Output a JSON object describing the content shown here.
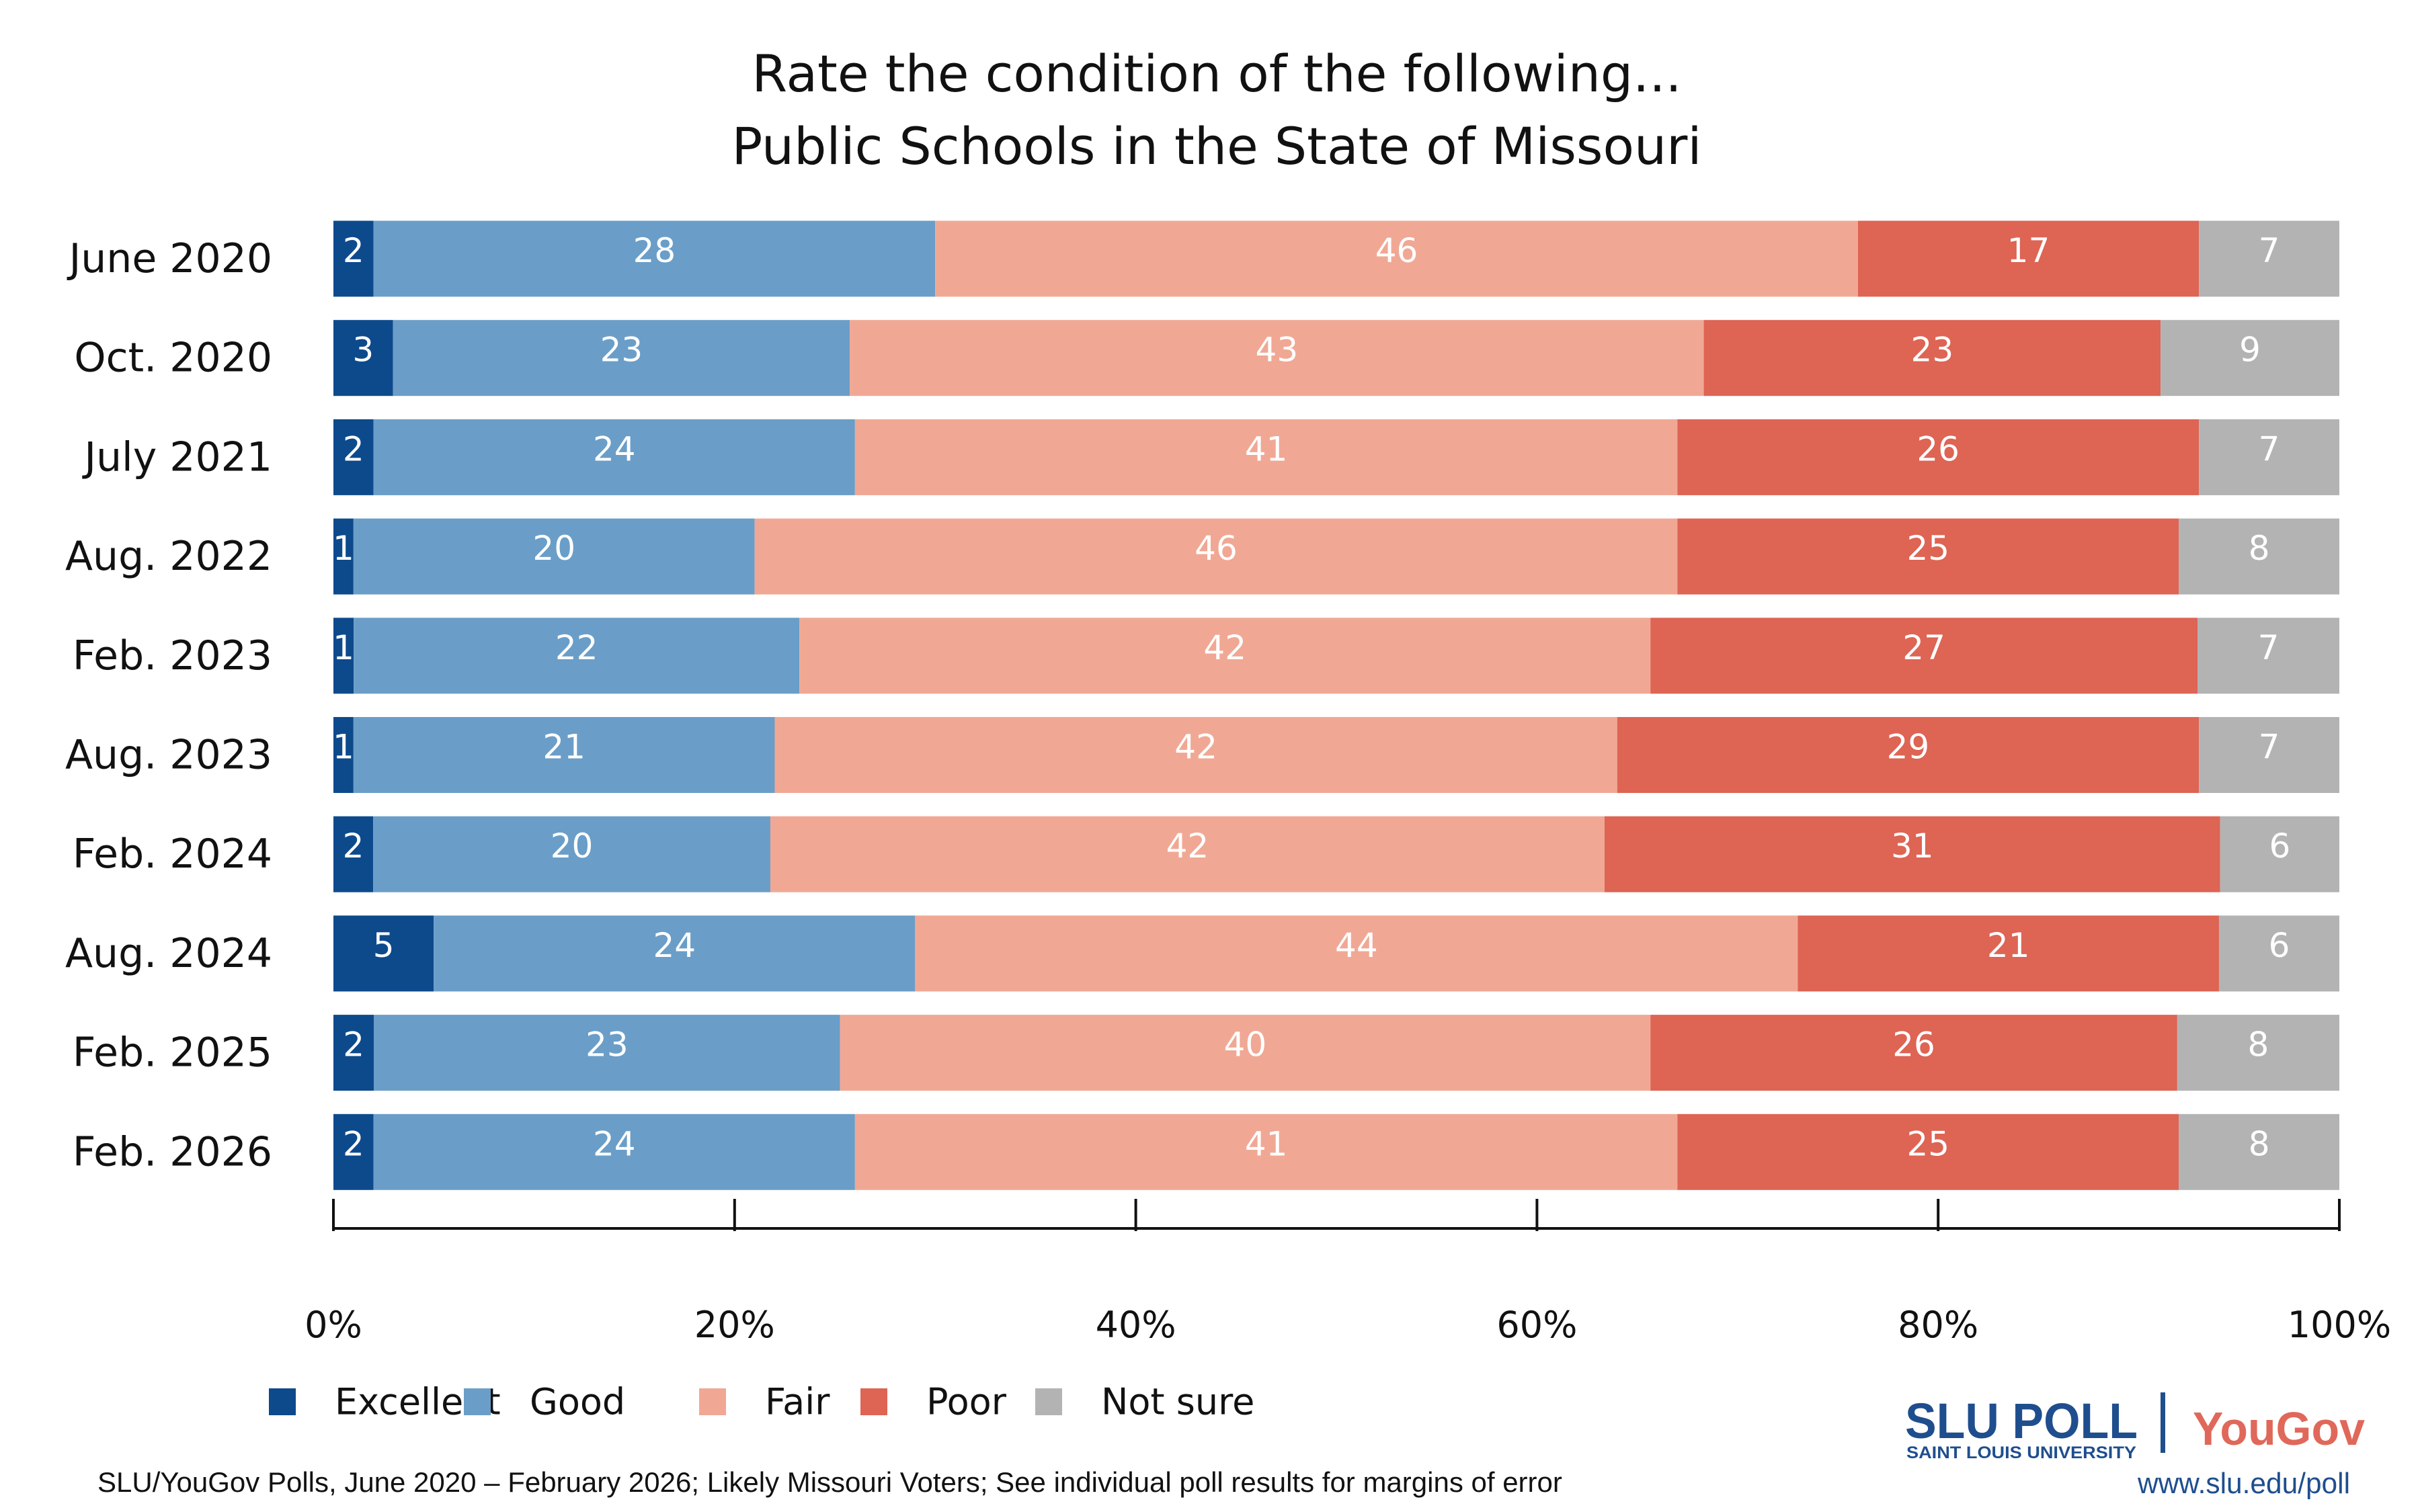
{
  "chart_data": {
    "type": "bar",
    "orientation": "horizontal",
    "stacked": true,
    "title": [
      "Rate the condition of the following...",
      "Public Schools in the State of Missouri"
    ],
    "categories": [
      "June 2020",
      "Oct. 2020",
      "July 2021",
      "Aug. 2022",
      "Feb. 2023",
      "Aug. 2023",
      "Feb. 2024",
      "Aug. 2024",
      "Feb. 2025",
      "Feb. 2026"
    ],
    "series": [
      {
        "name": "Excellent",
        "color": "#0d4a8c",
        "values": [
          2,
          3,
          2,
          1,
          1,
          1,
          2,
          5,
          2,
          2
        ]
      },
      {
        "name": "Good",
        "color": "#6a9ec8",
        "values": [
          28,
          23,
          24,
          20,
          22,
          21,
          20,
          24,
          23,
          24
        ]
      },
      {
        "name": "Fair",
        "color": "#f0a894",
        "values": [
          46,
          43,
          41,
          46,
          42,
          42,
          42,
          44,
          40,
          41
        ]
      },
      {
        "name": "Poor",
        "color": "#de6454",
        "values": [
          17,
          23,
          26,
          25,
          27,
          29,
          31,
          21,
          26,
          25
        ]
      },
      {
        "name": "Not sure",
        "color": "#b3b3b3",
        "values": [
          7,
          9,
          7,
          8,
          7,
          7,
          6,
          6,
          8,
          8
        ]
      }
    ],
    "xlim": [
      0,
      100
    ],
    "xticks": [
      "0%",
      "20%",
      "40%",
      "60%",
      "80%",
      "100%"
    ],
    "grid": false,
    "legend_position": "bottom-left"
  },
  "footer": {
    "source": "SLU/YouGov Polls, June 2020 – February 2026; Likely Missouri Voters; See individual poll results for margins of error",
    "logo_slu": "SLU POLL",
    "logo_slu_sub": "SAINT LOUIS UNIVERSITY",
    "logo_yougov": "YouGov",
    "url": "www.slu.edu/poll"
  }
}
